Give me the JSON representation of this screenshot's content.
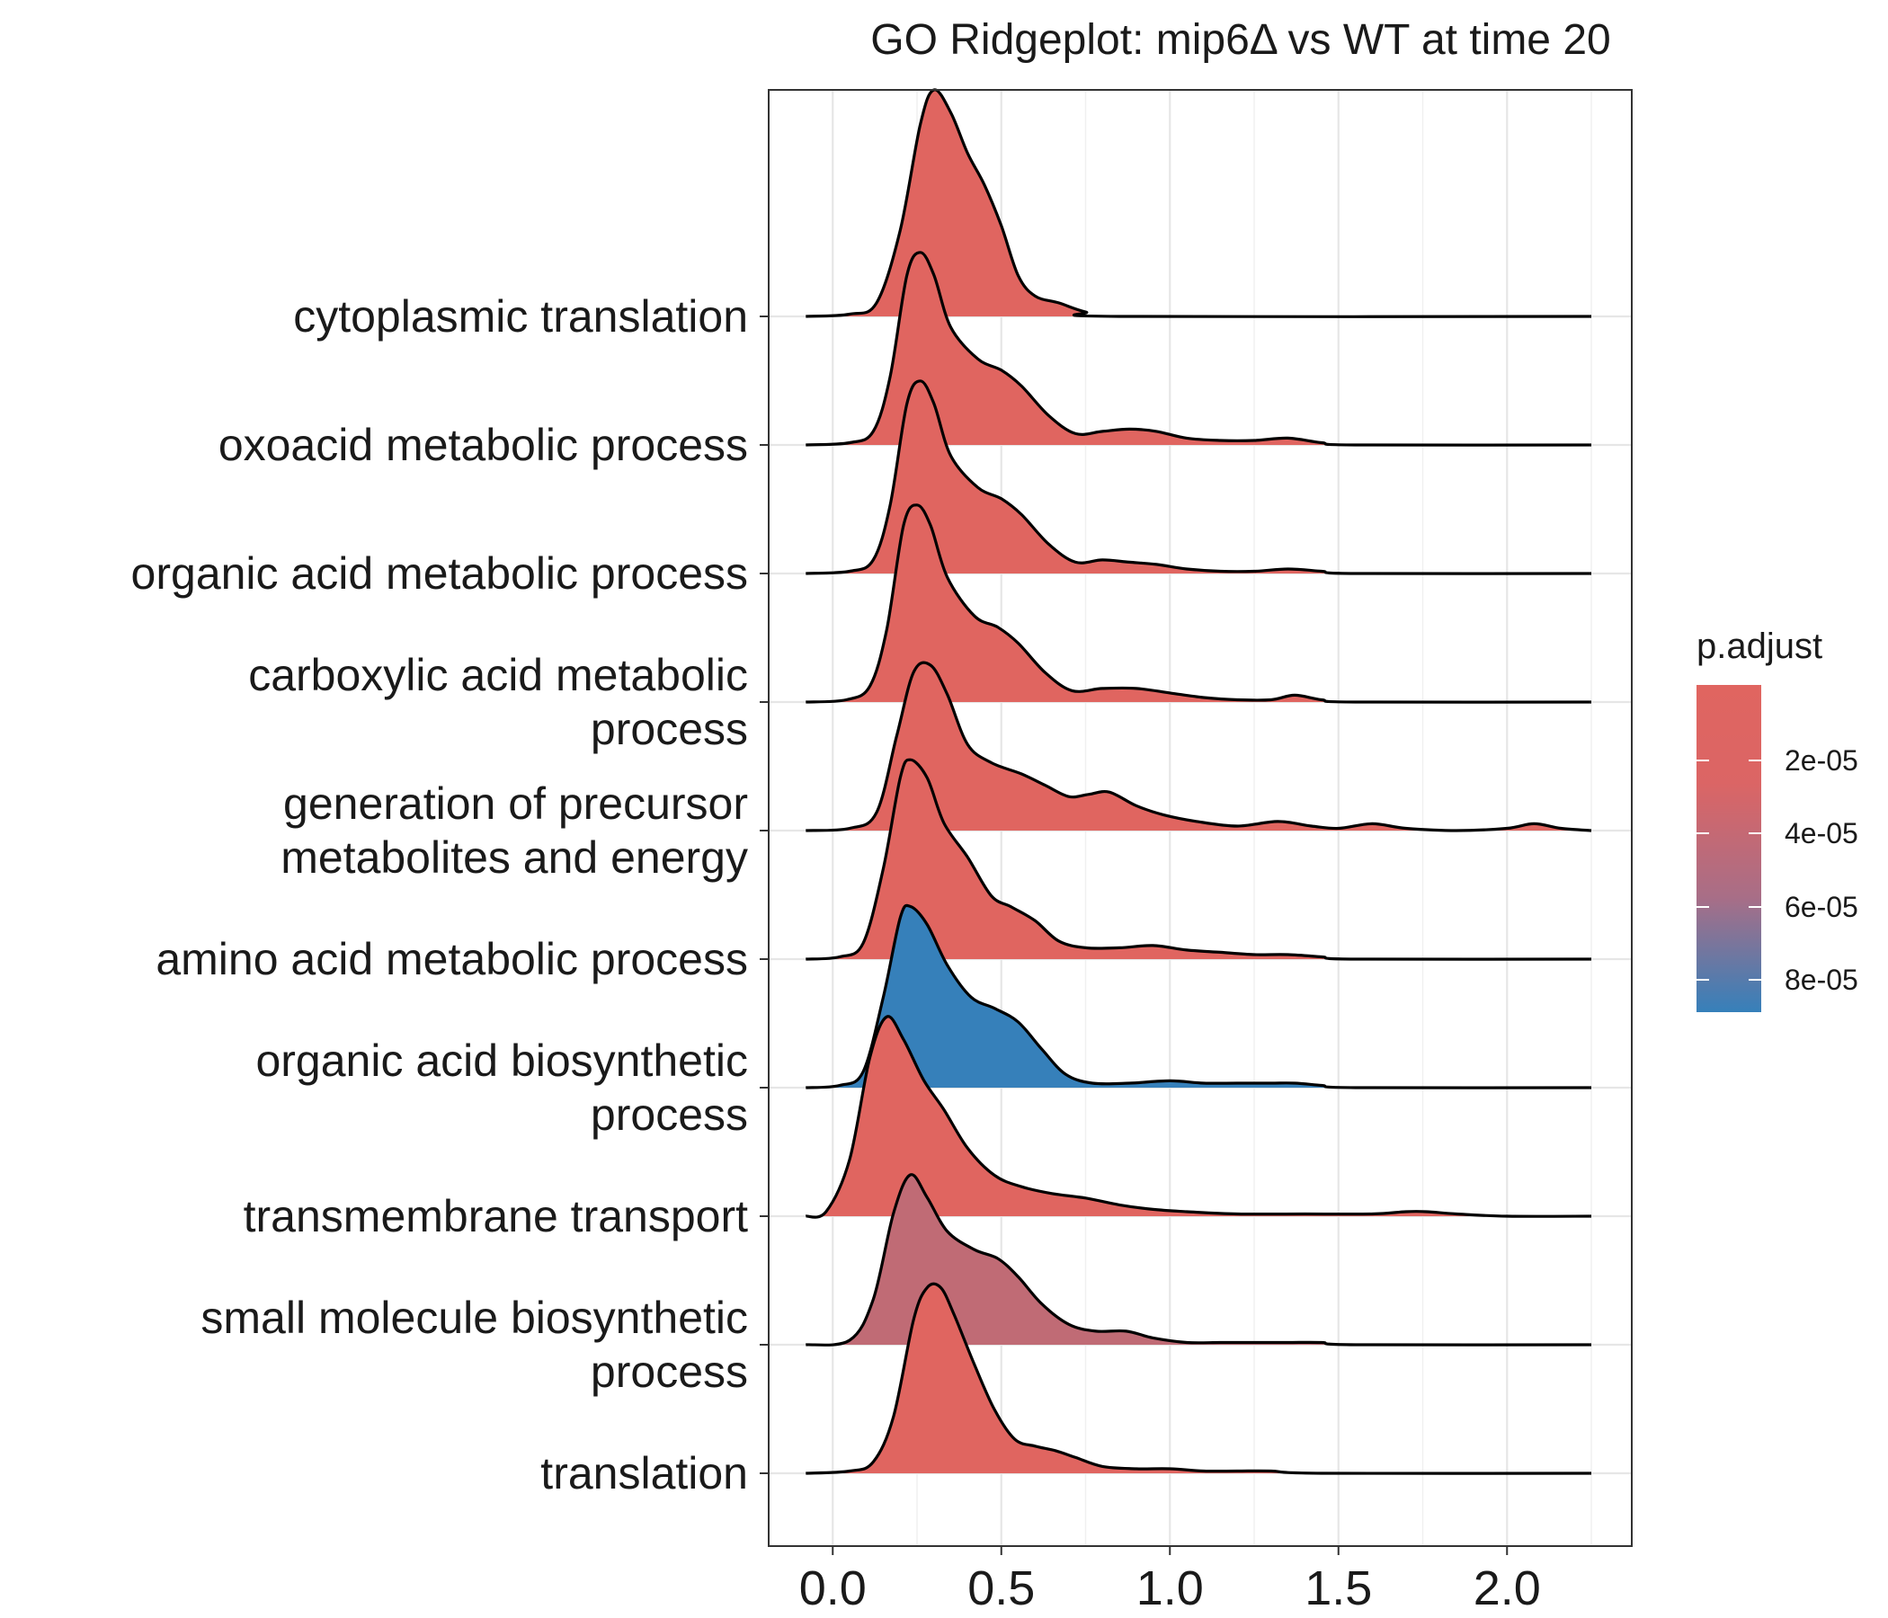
{
  "chart_data": {
    "type": "ridgeline",
    "title": "GO Ridgeplot: mip6Δ vs WT at time 20",
    "xlabel": "",
    "ylabel": "",
    "xlim": [
      -0.19,
      2.37
    ],
    "x_ticks": [
      {
        "value": 0.0,
        "label": "0.0"
      },
      {
        "value": 0.5,
        "label": "0.5"
      },
      {
        "value": 1.0,
        "label": "1.0"
      },
      {
        "value": 1.5,
        "label": "1.5"
      },
      {
        "value": 2.0,
        "label": "2.0"
      }
    ],
    "grid": true,
    "legend": {
      "title": "p.adjust",
      "placement": "right",
      "color_high": "#E06560",
      "color_low": "#3680BA",
      "ticks": [
        "2e-05",
        "4e-05",
        "6e-05",
        "8e-05"
      ]
    },
    "series": [
      {
        "name": "cytoplasmic translation",
        "color": "#E06560",
        "points": [
          [
            -0.08,
            0
          ],
          [
            0.05,
            0.01
          ],
          [
            0.13,
            0.06
          ],
          [
            0.2,
            0.38
          ],
          [
            0.26,
            0.85
          ],
          [
            0.3,
            1.0
          ],
          [
            0.35,
            0.9
          ],
          [
            0.4,
            0.72
          ],
          [
            0.45,
            0.58
          ],
          [
            0.5,
            0.4
          ],
          [
            0.55,
            0.18
          ],
          [
            0.6,
            0.09
          ],
          [
            0.67,
            0.06
          ],
          [
            0.75,
            0.02
          ],
          [
            0.85,
            0
          ],
          [
            2.25,
            0
          ]
        ]
      },
      {
        "name": "oxoacid metabolic process",
        "color": "#E06560",
        "points": [
          [
            -0.08,
            0
          ],
          [
            0.05,
            0.01
          ],
          [
            0.12,
            0.06
          ],
          [
            0.17,
            0.3
          ],
          [
            0.22,
            0.75
          ],
          [
            0.26,
            0.85
          ],
          [
            0.3,
            0.75
          ],
          [
            0.35,
            0.52
          ],
          [
            0.43,
            0.38
          ],
          [
            0.5,
            0.33
          ],
          [
            0.56,
            0.26
          ],
          [
            0.64,
            0.13
          ],
          [
            0.72,
            0.05
          ],
          [
            0.8,
            0.06
          ],
          [
            0.88,
            0.07
          ],
          [
            0.96,
            0.06
          ],
          [
            1.05,
            0.03
          ],
          [
            1.15,
            0.02
          ],
          [
            1.25,
            0.02
          ],
          [
            1.35,
            0.03
          ],
          [
            1.45,
            0.01
          ],
          [
            1.55,
            0
          ],
          [
            2.25,
            0
          ]
        ]
      },
      {
        "name": "organic acid metabolic process",
        "color": "#E06560",
        "points": [
          [
            -0.08,
            0
          ],
          [
            0.05,
            0.01
          ],
          [
            0.12,
            0.06
          ],
          [
            0.17,
            0.3
          ],
          [
            0.22,
            0.75
          ],
          [
            0.26,
            0.85
          ],
          [
            0.3,
            0.75
          ],
          [
            0.35,
            0.52
          ],
          [
            0.43,
            0.38
          ],
          [
            0.5,
            0.33
          ],
          [
            0.56,
            0.26
          ],
          [
            0.64,
            0.13
          ],
          [
            0.72,
            0.05
          ],
          [
            0.8,
            0.06
          ],
          [
            0.88,
            0.05
          ],
          [
            0.96,
            0.04
          ],
          [
            1.05,
            0.02
          ],
          [
            1.15,
            0.01
          ],
          [
            1.25,
            0.01
          ],
          [
            1.35,
            0.02
          ],
          [
            1.45,
            0.01
          ],
          [
            1.55,
            0
          ],
          [
            2.25,
            0
          ]
        ]
      },
      {
        "name": "carboxylic acid metabolic\nprocess",
        "color": "#E06560",
        "points": [
          [
            -0.08,
            0
          ],
          [
            0.04,
            0.01
          ],
          [
            0.11,
            0.07
          ],
          [
            0.16,
            0.32
          ],
          [
            0.21,
            0.78
          ],
          [
            0.25,
            0.87
          ],
          [
            0.29,
            0.78
          ],
          [
            0.34,
            0.55
          ],
          [
            0.42,
            0.38
          ],
          [
            0.49,
            0.33
          ],
          [
            0.55,
            0.26
          ],
          [
            0.63,
            0.13
          ],
          [
            0.71,
            0.05
          ],
          [
            0.8,
            0.06
          ],
          [
            0.9,
            0.06
          ],
          [
            1.0,
            0.04
          ],
          [
            1.1,
            0.02
          ],
          [
            1.2,
            0.01
          ],
          [
            1.3,
            0.01
          ],
          [
            1.37,
            0.03
          ],
          [
            1.45,
            0.01
          ],
          [
            1.55,
            0
          ],
          [
            2.25,
            0
          ]
        ]
      },
      {
        "name": "generation of precursor\nmetabolites and energy",
        "color": "#E06560",
        "points": [
          [
            -0.08,
            0
          ],
          [
            0.05,
            0.01
          ],
          [
            0.13,
            0.08
          ],
          [
            0.19,
            0.42
          ],
          [
            0.24,
            0.7
          ],
          [
            0.29,
            0.73
          ],
          [
            0.34,
            0.6
          ],
          [
            0.4,
            0.38
          ],
          [
            0.47,
            0.3
          ],
          [
            0.56,
            0.25
          ],
          [
            0.63,
            0.2
          ],
          [
            0.7,
            0.15
          ],
          [
            0.76,
            0.16
          ],
          [
            0.82,
            0.17
          ],
          [
            0.9,
            0.11
          ],
          [
            0.98,
            0.07
          ],
          [
            1.08,
            0.04
          ],
          [
            1.2,
            0.02
          ],
          [
            1.32,
            0.04
          ],
          [
            1.42,
            0.02
          ],
          [
            1.5,
            0.01
          ],
          [
            1.6,
            0.03
          ],
          [
            1.7,
            0.01
          ],
          [
            1.85,
            0
          ],
          [
            2.0,
            0.01
          ],
          [
            2.08,
            0.03
          ],
          [
            2.16,
            0.01
          ],
          [
            2.25,
            0
          ]
        ]
      },
      {
        "name": "amino acid metabolic process",
        "color": "#E06560",
        "points": [
          [
            -0.08,
            0
          ],
          [
            0.02,
            0.01
          ],
          [
            0.09,
            0.07
          ],
          [
            0.15,
            0.4
          ],
          [
            0.2,
            0.8
          ],
          [
            0.23,
            0.88
          ],
          [
            0.28,
            0.8
          ],
          [
            0.33,
            0.6
          ],
          [
            0.4,
            0.45
          ],
          [
            0.47,
            0.28
          ],
          [
            0.53,
            0.23
          ],
          [
            0.6,
            0.17
          ],
          [
            0.67,
            0.08
          ],
          [
            0.75,
            0.05
          ],
          [
            0.85,
            0.05
          ],
          [
            0.95,
            0.06
          ],
          [
            1.05,
            0.04
          ],
          [
            1.15,
            0.03
          ],
          [
            1.25,
            0.02
          ],
          [
            1.35,
            0.02
          ],
          [
            1.45,
            0.01
          ],
          [
            1.55,
            0
          ],
          [
            2.25,
            0
          ]
        ]
      },
      {
        "name": "organic acid biosynthetic\nprocess",
        "color": "#3680BA",
        "points": [
          [
            -0.08,
            0
          ],
          [
            0.02,
            0.01
          ],
          [
            0.09,
            0.07
          ],
          [
            0.15,
            0.4
          ],
          [
            0.2,
            0.75
          ],
          [
            0.23,
            0.8
          ],
          [
            0.28,
            0.72
          ],
          [
            0.34,
            0.54
          ],
          [
            0.41,
            0.4
          ],
          [
            0.48,
            0.35
          ],
          [
            0.55,
            0.29
          ],
          [
            0.62,
            0.17
          ],
          [
            0.69,
            0.06
          ],
          [
            0.77,
            0.02
          ],
          [
            0.88,
            0.02
          ],
          [
            1.0,
            0.03
          ],
          [
            1.1,
            0.02
          ],
          [
            1.2,
            0.02
          ],
          [
            1.3,
            0.02
          ],
          [
            1.37,
            0.02
          ],
          [
            1.45,
            0.01
          ],
          [
            1.55,
            0
          ],
          [
            2.25,
            0
          ]
        ]
      },
      {
        "name": "transmembrane transport",
        "color": "#E06560",
        "points": [
          [
            -0.08,
            0
          ],
          [
            -0.02,
            0.02
          ],
          [
            0.05,
            0.25
          ],
          [
            0.11,
            0.7
          ],
          [
            0.16,
            0.88
          ],
          [
            0.21,
            0.78
          ],
          [
            0.27,
            0.6
          ],
          [
            0.33,
            0.47
          ],
          [
            0.4,
            0.3
          ],
          [
            0.48,
            0.18
          ],
          [
            0.56,
            0.13
          ],
          [
            0.65,
            0.1
          ],
          [
            0.75,
            0.08
          ],
          [
            0.85,
            0.05
          ],
          [
            0.95,
            0.03
          ],
          [
            1.05,
            0.02
          ],
          [
            1.2,
            0.01
          ],
          [
            1.4,
            0.01
          ],
          [
            1.6,
            0.01
          ],
          [
            1.7,
            0.02
          ],
          [
            1.76,
            0.02
          ],
          [
            1.85,
            0.01
          ],
          [
            2.0,
            0
          ],
          [
            2.25,
            0
          ]
        ]
      },
      {
        "name": "small molecule biosynthetic\nprocess",
        "color": "#C06B75",
        "points": [
          [
            -0.08,
            0
          ],
          [
            0.05,
            0.02
          ],
          [
            0.12,
            0.2
          ],
          [
            0.18,
            0.58
          ],
          [
            0.23,
            0.75
          ],
          [
            0.28,
            0.65
          ],
          [
            0.34,
            0.5
          ],
          [
            0.42,
            0.42
          ],
          [
            0.49,
            0.38
          ],
          [
            0.55,
            0.3
          ],
          [
            0.62,
            0.18
          ],
          [
            0.7,
            0.09
          ],
          [
            0.78,
            0.06
          ],
          [
            0.87,
            0.06
          ],
          [
            0.95,
            0.03
          ],
          [
            1.05,
            0.01
          ],
          [
            1.15,
            0.01
          ],
          [
            1.25,
            0.01
          ],
          [
            1.35,
            0.01
          ],
          [
            1.45,
            0.01
          ],
          [
            1.55,
            0
          ],
          [
            2.25,
            0
          ]
        ]
      },
      {
        "name": "translation",
        "color": "#E06560",
        "points": [
          [
            -0.08,
            0
          ],
          [
            0.05,
            0.01
          ],
          [
            0.12,
            0.05
          ],
          [
            0.18,
            0.25
          ],
          [
            0.24,
            0.68
          ],
          [
            0.28,
            0.82
          ],
          [
            0.32,
            0.82
          ],
          [
            0.36,
            0.7
          ],
          [
            0.42,
            0.48
          ],
          [
            0.48,
            0.28
          ],
          [
            0.54,
            0.15
          ],
          [
            0.6,
            0.12
          ],
          [
            0.66,
            0.1
          ],
          [
            0.72,
            0.07
          ],
          [
            0.8,
            0.03
          ],
          [
            0.9,
            0.02
          ],
          [
            1.0,
            0.02
          ],
          [
            1.1,
            0.01
          ],
          [
            1.2,
            0.01
          ],
          [
            1.3,
            0.01
          ],
          [
            1.45,
            0
          ],
          [
            2.25,
            0
          ]
        ]
      }
    ]
  }
}
